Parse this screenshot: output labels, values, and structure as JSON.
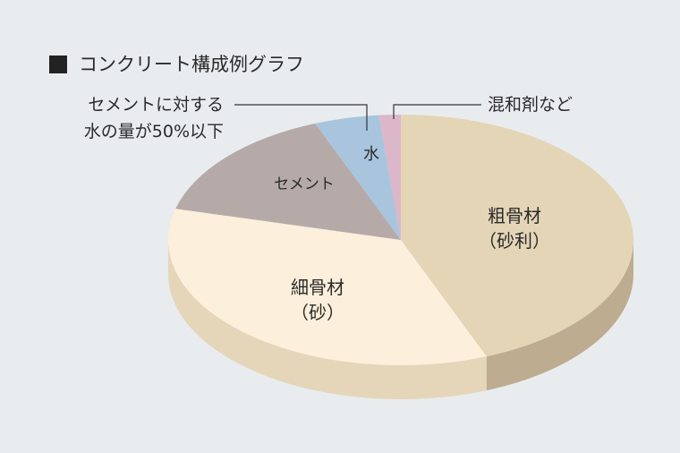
{
  "chart_data": {
    "type": "pie3d",
    "title": "コンクリート構成例グラフ",
    "categories": [
      "粗骨材\n（砂利）",
      "細骨材\n（砂）",
      "セメント",
      "水",
      "混和剤など"
    ],
    "values": [
      44,
      35,
      15,
      4.5,
      1.5
    ],
    "colors": [
      "#e4d5b7",
      "#fcefdb",
      "#b6aaa9",
      "#a9c5de",
      "#dcb6c9"
    ],
    "side_colors": [
      "#bdac90",
      "#e5d6ba",
      "#9a8f8e",
      "#8ea8bf",
      "#bf9aac"
    ],
    "annotation": "セメントに対する\n水の量が50%以下"
  }
}
